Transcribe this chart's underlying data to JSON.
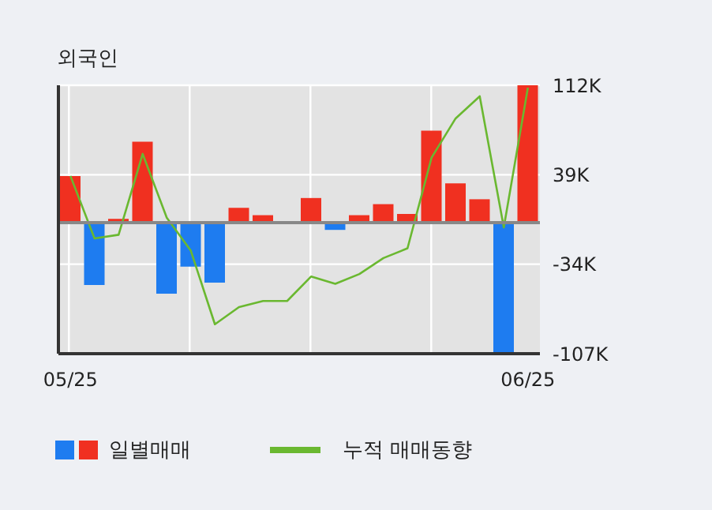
{
  "chart_data": {
    "type": "bar",
    "title": "외국인",
    "categories": [
      "05/25",
      null,
      null,
      null,
      null,
      null,
      null,
      null,
      null,
      null,
      null,
      null,
      null,
      null,
      null,
      null,
      null,
      null,
      null,
      "06/25"
    ],
    "series": [
      {
        "name": "일별매매",
        "colors": [
          "#f03020",
          "#1e7cf0",
          "#f03020",
          "#f03020",
          "#1e7cf0",
          "#1e7cf0",
          "#1e7cf0",
          "#f03020",
          "#f03020",
          "#f03020",
          "#f03020",
          "#1e7cf0",
          "#f03020",
          "#f03020",
          "#f03020",
          "#f03020",
          "#f03020",
          "#f03020",
          "#1e7cf0",
          "#f03020"
        ],
        "values": [
          38,
          -51,
          3,
          66,
          -58,
          -36,
          -49,
          12,
          6,
          0,
          20,
          -6,
          6,
          15,
          7,
          75,
          32,
          19,
          -107,
          112
        ]
      },
      {
        "name": "누적 매매동향",
        "type": "line",
        "color": "#6ab830",
        "values": [
          38,
          -13,
          -10,
          56,
          4,
          -23,
          -83,
          -69,
          -64,
          -64,
          -44,
          -50,
          -42,
          -29,
          -21,
          53,
          85,
          103,
          -4,
          110
        ]
      }
    ],
    "ylim": [
      -107,
      112
    ],
    "yticks": [
      {
        "value": 112,
        "label": "112K"
      },
      {
        "value": 39,
        "label": "39K"
      },
      {
        "value": -34,
        "label": "-34K"
      },
      {
        "value": -107,
        "label": "-107K"
      }
    ],
    "ref_lines": [
      {
        "axis": "y",
        "value": 0,
        "color": "#888888"
      }
    ],
    "grid": true,
    "legend": "bottom"
  }
}
